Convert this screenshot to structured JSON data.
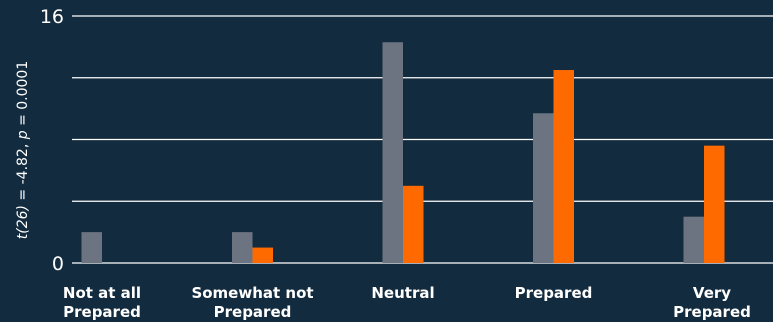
{
  "chart_data": {
    "type": "bar",
    "categories": [
      [
        "Not at all",
        "Prepared"
      ],
      [
        "Somewhat not",
        "Prepared"
      ],
      [
        "Neutral"
      ],
      [
        "Prepared"
      ],
      [
        "Very",
        "Prepared"
      ]
    ],
    "series": [
      {
        "color": "#6b7480",
        "values": [
          2,
          2,
          14.3,
          9.7,
          3
        ]
      },
      {
        "color": "#ff6a00",
        "values": [
          0,
          1,
          5,
          12.5,
          7.6
        ]
      }
    ],
    "ylim": [
      0,
      16
    ],
    "yticks": [
      {
        "value": 0,
        "label": "0"
      },
      {
        "value": 16,
        "label": "16"
      }
    ],
    "gridlines": [
      0,
      4,
      8,
      12,
      16
    ],
    "ylabel": {
      "italic_a": "t(26)",
      "text_a": " = -4.82, ",
      "italic_b": "p",
      "text_b": " = 0.0001"
    },
    "grid": true,
    "background": "#132b3e"
  }
}
